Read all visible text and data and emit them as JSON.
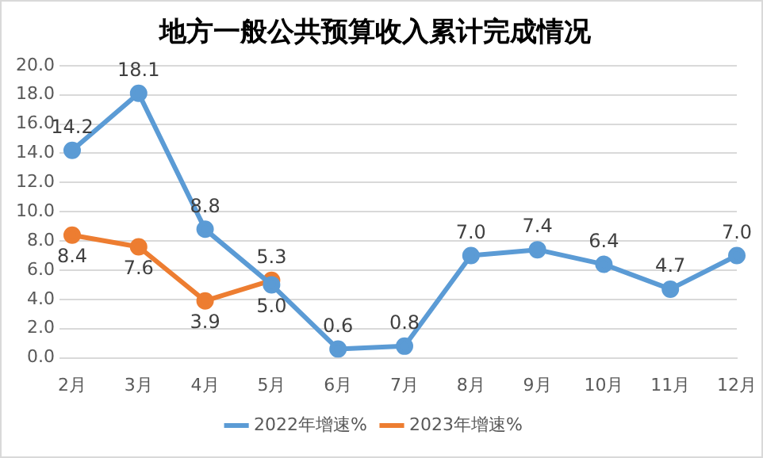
{
  "chart_data": {
    "type": "line",
    "title": "地方一般公共预算收入累计完成情况",
    "categories": [
      "2月",
      "3月",
      "4月",
      "5月",
      "6月",
      "7月",
      "8月",
      "9月",
      "10月",
      "11月",
      "12月"
    ],
    "series": [
      {
        "name": "2022年增速%",
        "color": "#5b9bd5",
        "values": [
          14.2,
          18.1,
          8.8,
          5.0,
          0.6,
          0.8,
          7.0,
          7.4,
          6.4,
          4.7,
          7.0
        ],
        "value_labels": [
          "14.2",
          "18.1",
          "8.8",
          "5.0",
          "0.6",
          "0.8",
          "7.0",
          "7.4",
          "6.4",
          "4.7",
          "7.0"
        ]
      },
      {
        "name": "2023年增速%",
        "color": "#ed7d31",
        "values": [
          8.4,
          7.6,
          3.9,
          5.3,
          null,
          null,
          null,
          null,
          null,
          null,
          null
        ],
        "value_labels": [
          "8.4",
          "7.6",
          "3.9",
          "5.3",
          null,
          null,
          null,
          null,
          null,
          null,
          null
        ]
      }
    ],
    "ylim": [
      0,
      20
    ],
    "yticks": [
      {
        "value": 0,
        "label": "0.0"
      },
      {
        "value": 2,
        "label": "2.0"
      },
      {
        "value": 4,
        "label": "4.0"
      },
      {
        "value": 6,
        "label": "6.0"
      },
      {
        "value": 8,
        "label": "8.0"
      },
      {
        "value": 10,
        "label": "10.0"
      },
      {
        "value": 12,
        "label": "12.0"
      },
      {
        "value": 14,
        "label": "14.0"
      },
      {
        "value": 16,
        "label": "16.0"
      },
      {
        "value": 18,
        "label": "18.0"
      },
      {
        "value": 20,
        "label": "20.0"
      }
    ],
    "grid": "y",
    "legend": "bottom",
    "marker": "circle",
    "line_style": "solid"
  }
}
